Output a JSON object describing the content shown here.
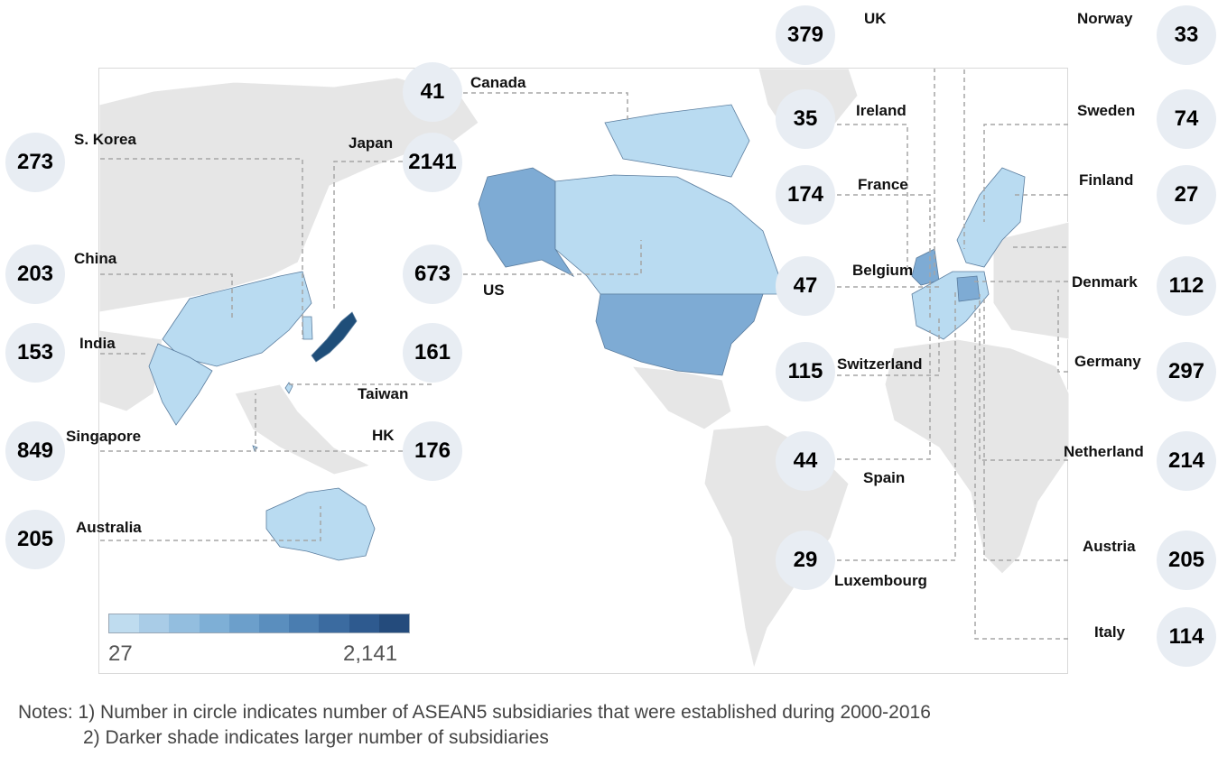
{
  "legend": {
    "min_label": "27",
    "max_label": "2,141",
    "colors": [
      "#bfdcef",
      "#a9cce7",
      "#93bedf",
      "#7eafd6",
      "#6c9fcb",
      "#5a8ebe",
      "#4a7db0",
      "#3b6ba0",
      "#2e5a8f",
      "#244b7c"
    ]
  },
  "colors": {
    "land_gray": "#e6e6e6",
    "bubble_bg": "#e8edf3",
    "leader_line": "#a6a6a6",
    "shade_light": "#b9dbf1",
    "shade_mid": "#7eabd4",
    "shade_dark": "#1f4e79"
  },
  "countries": [
    {
      "name": "S. Korea",
      "value": "273"
    },
    {
      "name": "China",
      "value": "203"
    },
    {
      "name": "India",
      "value": "153"
    },
    {
      "name": "Singapore",
      "value": "849"
    },
    {
      "name": "Australia",
      "value": "205"
    },
    {
      "name": "Canada",
      "value": "41"
    },
    {
      "name": "Japan",
      "value": "2141"
    },
    {
      "name": "US",
      "value": "673"
    },
    {
      "name": "Taiwan",
      "value": "161"
    },
    {
      "name": "HK",
      "value": "176"
    },
    {
      "name": "UK",
      "value": "379"
    },
    {
      "name": "Ireland",
      "value": "35"
    },
    {
      "name": "France",
      "value": "174"
    },
    {
      "name": "Belgium",
      "value": "47"
    },
    {
      "name": "Switzerland",
      "value": "115"
    },
    {
      "name": "Spain",
      "value": "44"
    },
    {
      "name": "Luxembourg",
      "value": "29"
    },
    {
      "name": "Norway",
      "value": "33"
    },
    {
      "name": "Sweden",
      "value": "74"
    },
    {
      "name": "Finland",
      "value": "27"
    },
    {
      "name": "Denmark",
      "value": "112"
    },
    {
      "name": "Germany",
      "value": "297"
    },
    {
      "name": "Netherland",
      "value": "214"
    },
    {
      "name": "Austria",
      "value": "205"
    },
    {
      "name": "Italy",
      "value": "114"
    }
  ],
  "notes": {
    "line1": "Notes: 1) Number in circle indicates number of ASEAN5 subsidiaries that were established during 2000-2016",
    "line2": "2) Darker shade indicates larger number of subsidiaries"
  }
}
